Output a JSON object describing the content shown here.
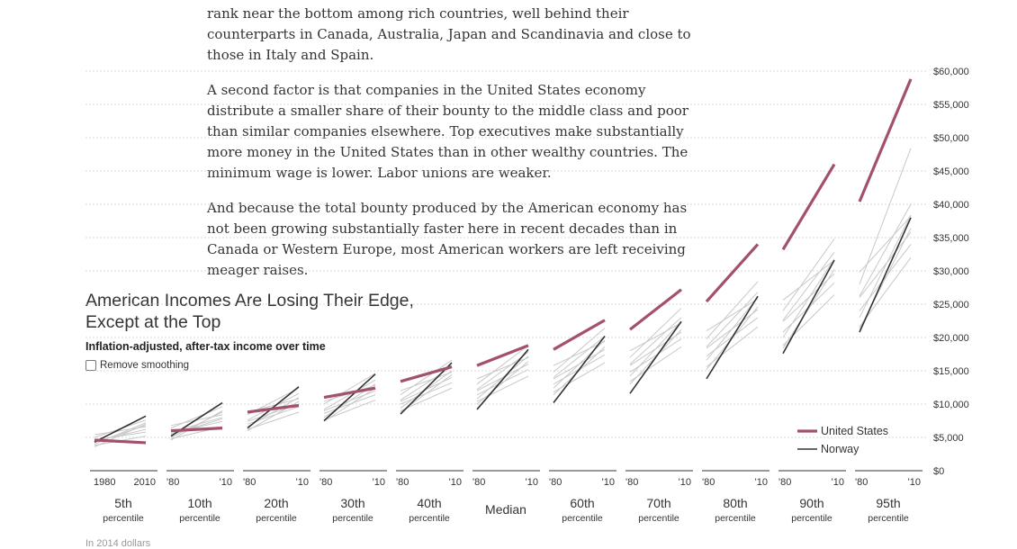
{
  "article": {
    "paragraphs": [
      "rank near the bottom among rich countries, well behind their counterparts in Canada, Australia, Japan and Scandinavia and close to those in Italy and Spain.",
      "A second factor is that companies in the United States economy distribute a smaller share of their bounty to the middle class and poor than similar companies elsewhere. Top executives make substantially more money in the United States than in other wealthy countries. The minimum wage is lower. Labor unions are weaker.",
      "And because the total bounty produced by the American economy has not been growing substantially faster here in recent decades than in Canada or Western Europe, most American workers are left receiving meager raises."
    ]
  },
  "chart": {
    "title": "American Incomes Are Losing Their Edge, Except at the Top",
    "subtitle": "Inflation-adjusted, after-tax income over time",
    "smoothing_label": "Remove smoothing",
    "footnote": "In 2014 dollars"
  },
  "colors": {
    "us": "#a3506f",
    "norway": "#333333",
    "other": "#c8c8c8",
    "grid": "#cccccc"
  },
  "chart_data": {
    "type": "line",
    "y_unit": "2014 dollars",
    "ylim": [
      0,
      60000
    ],
    "y_ticks": [
      0,
      5000,
      10000,
      15000,
      20000,
      25000,
      30000,
      35000,
      40000,
      45000,
      50000,
      55000,
      60000
    ],
    "y_tick_labels": [
      "$0",
      "$5,000",
      "$10,000",
      "$15,000",
      "$20,000",
      "$25,000",
      "$30,000",
      "$35,000",
      "$40,000",
      "$45,000",
      "$50,000",
      "$55,000",
      "$60,000"
    ],
    "x_years": [
      1980,
      2010
    ],
    "first_panel_x_labels": [
      "1980",
      "2010"
    ],
    "panel_x_labels": [
      "'80",
      "'10"
    ],
    "legend": [
      {
        "name": "United States",
        "key": "us"
      },
      {
        "name": "Norway",
        "key": "norway"
      }
    ],
    "panels": [
      {
        "label": "5th",
        "sub": "percentile",
        "us": [
          4600,
          4200
        ],
        "norway": [
          4300,
          8200
        ],
        "others": [
          [
            4000,
            7200
          ],
          [
            4400,
            6200
          ],
          [
            5000,
            7600
          ],
          [
            3800,
            5200
          ],
          [
            4600,
            5800
          ],
          [
            3600,
            7000
          ],
          [
            5400,
            6600
          ],
          [
            4200,
            6800
          ]
        ]
      },
      {
        "label": "10th",
        "sub": "percentile",
        "us": [
          6000,
          6400
        ],
        "norway": [
          5200,
          10200
        ],
        "others": [
          [
            5000,
            8800
          ],
          [
            5600,
            7400
          ],
          [
            6400,
            9600
          ],
          [
            4800,
            6600
          ],
          [
            5800,
            8000
          ],
          [
            4600,
            9000
          ],
          [
            6800,
            8400
          ],
          [
            5400,
            7800
          ]
        ]
      },
      {
        "label": "20th",
        "sub": "percentile",
        "us": [
          8800,
          9800
        ],
        "norway": [
          6400,
          12600
        ],
        "others": [
          [
            6600,
            11000
          ],
          [
            7400,
            10000
          ],
          [
            8400,
            12400
          ],
          [
            6200,
            8800
          ],
          [
            7600,
            11600
          ],
          [
            6000,
            10400
          ],
          [
            8800,
            10800
          ],
          [
            7000,
            9600
          ]
        ]
      },
      {
        "label": "30th",
        "sub": "percentile",
        "us": [
          11000,
          12400
        ],
        "norway": [
          7500,
          14500
        ],
        "others": [
          [
            8000,
            13000
          ],
          [
            9000,
            12000
          ],
          [
            10000,
            14600
          ],
          [
            7600,
            10600
          ],
          [
            9200,
            13600
          ],
          [
            7400,
            12400
          ],
          [
            10400,
            12800
          ],
          [
            8600,
            11400
          ]
        ]
      },
      {
        "label": "40th",
        "sub": "percentile",
        "us": [
          13400,
          15600
        ],
        "norway": [
          8500,
          16200
        ],
        "others": [
          [
            9400,
            15000
          ],
          [
            10400,
            14000
          ],
          [
            11400,
            16600
          ],
          [
            9000,
            12400
          ],
          [
            10600,
            15600
          ],
          [
            8800,
            14400
          ],
          [
            12000,
            14800
          ],
          [
            10000,
            13200
          ]
        ]
      },
      {
        "label": "Median",
        "sub": "",
        "us": [
          15800,
          18800
        ],
        "norway": [
          9200,
          18200
        ],
        "others": [
          [
            10800,
            17200
          ],
          [
            12000,
            16000
          ],
          [
            13000,
            18800
          ],
          [
            10400,
            14200
          ],
          [
            12200,
            17800
          ],
          [
            10000,
            16400
          ],
          [
            13800,
            17000
          ],
          [
            11400,
            15200
          ]
        ]
      },
      {
        "label": "60th",
        "sub": "percentile",
        "us": [
          18200,
          22600
        ],
        "norway": [
          10200,
          20200
        ],
        "others": [
          [
            12400,
            19600
          ],
          [
            13800,
            18200
          ],
          [
            14800,
            21400
          ],
          [
            11800,
            16200
          ],
          [
            14000,
            20200
          ],
          [
            11400,
            18600
          ],
          [
            15800,
            19400
          ],
          [
            13000,
            17400
          ]
        ]
      },
      {
        "label": "70th",
        "sub": "percentile",
        "us": [
          21200,
          27200
        ],
        "norway": [
          11600,
          22400
        ],
        "others": [
          [
            14200,
            22400
          ],
          [
            15800,
            20800
          ],
          [
            17000,
            24400
          ],
          [
            13400,
            18600
          ],
          [
            16000,
            23000
          ],
          [
            13000,
            21200
          ],
          [
            18000,
            22200
          ],
          [
            14800,
            19800
          ]
        ]
      },
      {
        "label": "80th",
        "sub": "percentile",
        "us": [
          25400,
          34000
        ],
        "norway": [
          13800,
          26200
        ],
        "others": [
          [
            16600,
            26000
          ],
          [
            18400,
            24200
          ],
          [
            19800,
            28400
          ],
          [
            15600,
            21600
          ],
          [
            18600,
            26800
          ],
          [
            15200,
            24600
          ],
          [
            21000,
            25800
          ],
          [
            17200,
            23000
          ]
        ]
      },
      {
        "label": "90th",
        "sub": "percentile",
        "us": [
          33200,
          46000
        ],
        "norway": [
          17600,
          31600
        ],
        "others": [
          [
            20000,
            31800
          ],
          [
            22400,
            29600
          ],
          [
            24000,
            34800
          ],
          [
            18800,
            26400
          ],
          [
            22600,
            32800
          ],
          [
            18400,
            30200
          ],
          [
            25600,
            31600
          ],
          [
            20800,
            28200
          ]
        ]
      },
      {
        "label": "95th",
        "sub": "percentile",
        "us": [
          40400,
          58800
        ],
        "norway": [
          20800,
          38000
        ],
        "others": [
          [
            23000,
            38400
          ],
          [
            26000,
            35800
          ],
          [
            28000,
            48400
          ],
          [
            21600,
            32000
          ],
          [
            26200,
            40000
          ],
          [
            21200,
            36400
          ],
          [
            29800,
            38200
          ],
          [
            24000,
            34000
          ]
        ]
      }
    ]
  }
}
